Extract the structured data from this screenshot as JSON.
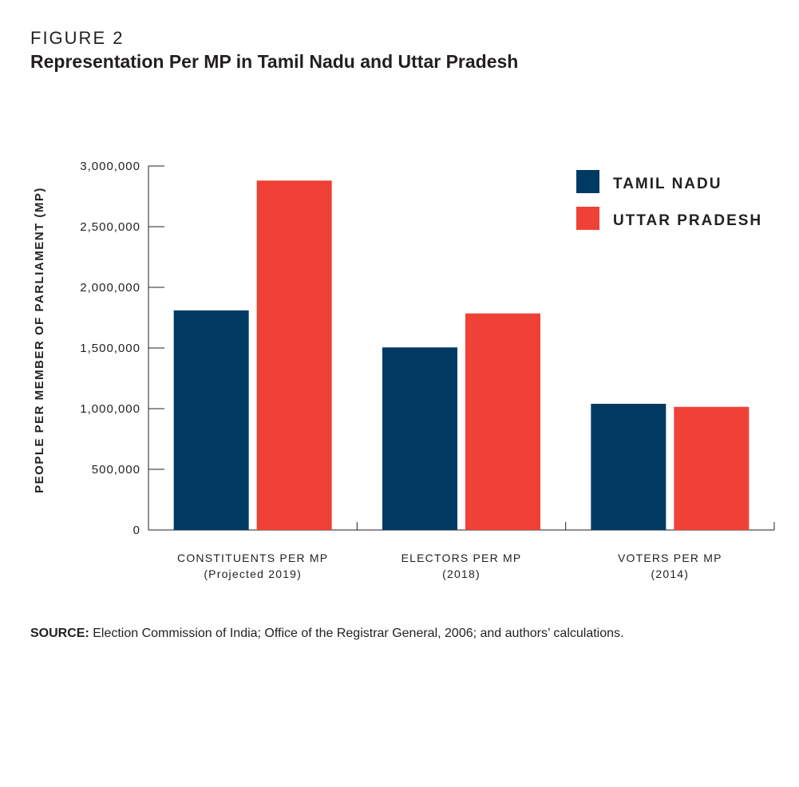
{
  "figure": {
    "label": "FIGURE 2",
    "title": "Representation Per MP in Tamil Nadu and Uttar Pradesh"
  },
  "colors": {
    "tamil_nadu": "#003a63",
    "uttar_pradesh": "#ef4136",
    "axis": "#231f20",
    "text": "#231f20"
  },
  "chart_data": {
    "type": "bar",
    "categories": [
      [
        "CONSTITUENTS PER MP",
        "(Projected 2019)"
      ],
      [
        "ELECTORS PER MP",
        "(2018)"
      ],
      [
        "VOTERS PER MP",
        "(2014)"
      ]
    ],
    "series": [
      {
        "name": "TAMIL NADU",
        "values": [
          1810000,
          1505000,
          1040000
        ]
      },
      {
        "name": "UTTAR PRADESH",
        "values": [
          2880000,
          1785000,
          1015000
        ]
      }
    ],
    "ylabel": "PEOPLE PER MEMBER OF PARLIAMENT (MP)",
    "ylim": [
      0,
      3000000
    ],
    "yticks": [
      0,
      500000,
      1000000,
      1500000,
      2000000,
      2500000,
      3000000
    ],
    "ytick_labels": [
      "0",
      "500,000",
      "1,000,000",
      "1,500,000",
      "2,000,000",
      "2,500,000",
      "3,000,000"
    ],
    "grid": false,
    "legend_position": "top-right"
  },
  "source": {
    "label": "SOURCE:",
    "text": " Election Commission of India; Office of the Registrar General, 2006; and authors’ calculations."
  }
}
